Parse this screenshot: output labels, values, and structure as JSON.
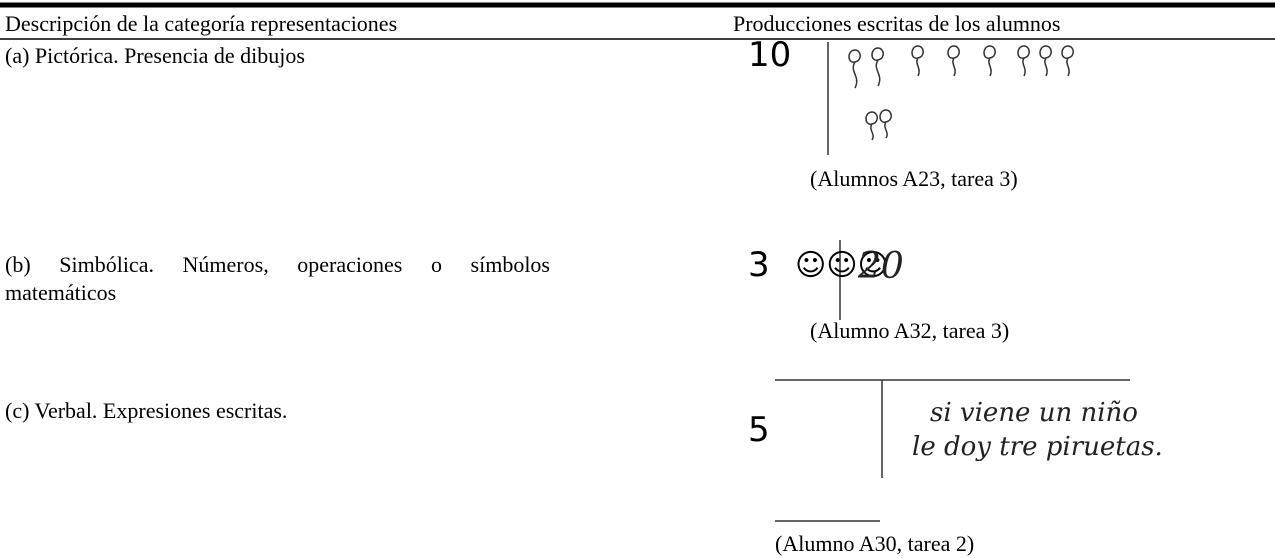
{
  "header": {
    "col1": "Descripción de la categoría representaciones",
    "col2": "Producciones escritas de los alumnos"
  },
  "rows": [
    {
      "description": "(a) Pictórica. Presencia de dibujos",
      "number": "10",
      "caption": "(Alumnos A23, tarea 3)"
    },
    {
      "description": "(b) Simbólica. Números, operaciones o símbolos matemáticos",
      "number": "3",
      "symbols": "☺☺☺",
      "handwriting": "20",
      "caption": "(Alumno A32, tarea 3)"
    },
    {
      "description": "(c) Verbal. Expresiones escritas.",
      "number": "5",
      "handwriting": [
        "si viene un niño",
        "le doy tre piruetas."
      ],
      "caption": "(Alumno A30, tarea 2)"
    }
  ]
}
